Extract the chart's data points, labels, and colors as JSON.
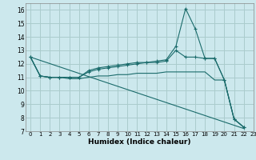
{
  "xlabel": "Humidex (Indice chaleur)",
  "background_color": "#cce8ed",
  "grid_color": "#aacccc",
  "line_color": "#1a6b6b",
  "xlim": [
    -0.5,
    23
  ],
  "ylim": [
    7,
    16.5
  ],
  "yticks": [
    7,
    8,
    9,
    10,
    11,
    12,
    13,
    14,
    15,
    16
  ],
  "xticks": [
    0,
    1,
    2,
    3,
    4,
    5,
    6,
    7,
    8,
    9,
    10,
    11,
    12,
    13,
    14,
    15,
    16,
    17,
    18,
    19,
    20,
    21,
    22,
    23
  ],
  "series": [
    {
      "x": [
        0,
        1,
        2,
        3,
        4,
        5,
        6,
        7,
        8,
        9,
        10,
        11,
        12,
        13,
        14,
        15,
        16,
        17,
        18,
        19,
        20,
        21,
        22
      ],
      "y": [
        12.5,
        11.1,
        11.0,
        11.0,
        11.0,
        11.0,
        11.5,
        11.7,
        11.8,
        11.9,
        12.0,
        12.1,
        12.1,
        12.2,
        12.3,
        13.3,
        16.1,
        14.6,
        12.4,
        12.4,
        10.8,
        7.9,
        7.3
      ],
      "marker": true
    },
    {
      "x": [
        0,
        1,
        2,
        3,
        4,
        5,
        6,
        7,
        8,
        9,
        10,
        11,
        12,
        13,
        14,
        15,
        16,
        17,
        18,
        19,
        20,
        21,
        22
      ],
      "y": [
        12.5,
        11.1,
        11.0,
        11.0,
        11.0,
        11.0,
        11.4,
        11.6,
        11.7,
        11.8,
        11.9,
        12.0,
        12.1,
        12.1,
        12.2,
        13.0,
        12.5,
        12.5,
        12.4,
        12.4,
        10.8,
        7.9,
        7.3
      ],
      "marker": true
    },
    {
      "x": [
        0,
        1,
        2,
        3,
        4,
        5,
        6,
        7,
        8,
        9,
        10,
        11,
        12,
        13,
        14,
        15,
        16,
        17,
        18,
        19,
        20,
        21,
        22
      ],
      "y": [
        12.5,
        11.1,
        11.0,
        11.0,
        10.9,
        10.9,
        11.0,
        11.1,
        11.1,
        11.2,
        11.2,
        11.3,
        11.3,
        11.3,
        11.4,
        11.4,
        11.4,
        11.4,
        11.4,
        10.8,
        10.8,
        7.9,
        7.3
      ],
      "marker": false
    },
    {
      "x": [
        0,
        22
      ],
      "y": [
        12.5,
        7.2
      ],
      "marker": false
    }
  ]
}
